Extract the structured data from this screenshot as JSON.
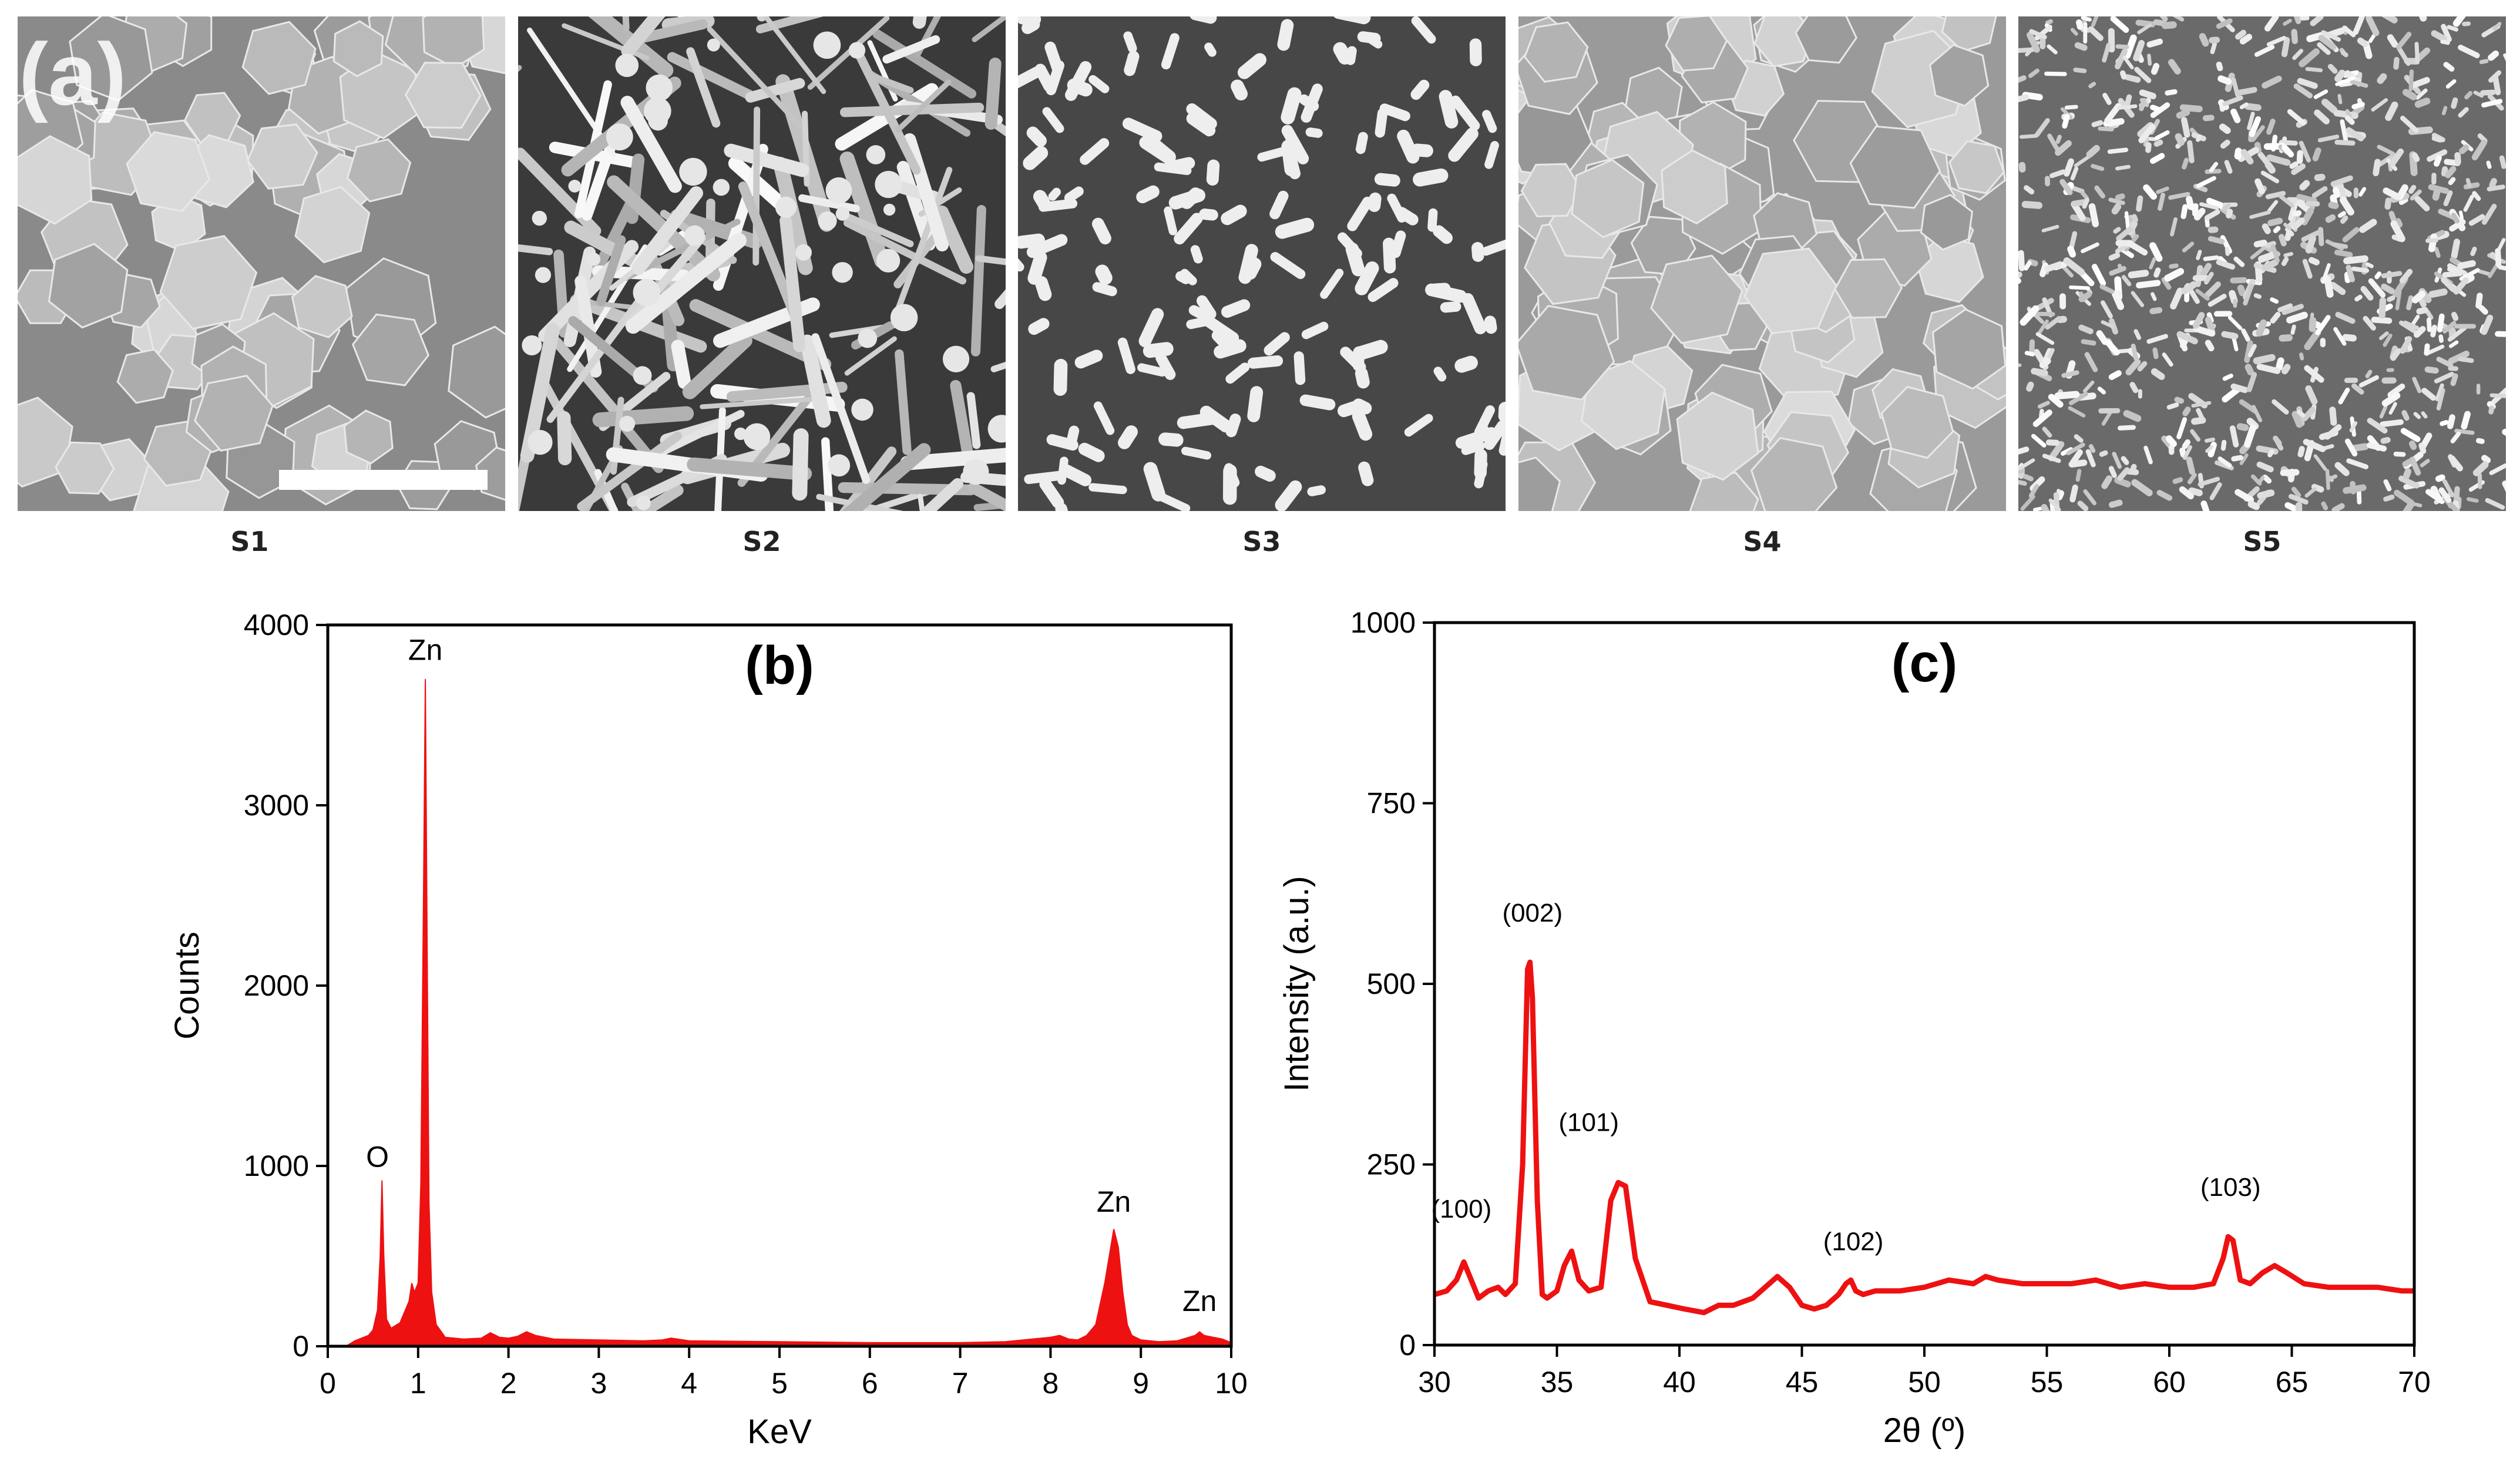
{
  "figure": {
    "panel_a_label": "(a)",
    "sem_images": [
      {
        "label": "S1",
        "morphology": "hexagonal-platelets"
      },
      {
        "label": "S2",
        "morphology": "needle-rods"
      },
      {
        "label": "S3",
        "morphology": "sparse-short-rods"
      },
      {
        "label": "S4",
        "morphology": "dense-hexagonal-platelets"
      },
      {
        "label": "S5",
        "morphology": "fine-dense-grains"
      }
    ]
  },
  "colors": {
    "series": "#ee1111",
    "axis": "#000000"
  },
  "chart_data": [
    {
      "type": "area",
      "panel_label": "(b)",
      "title": "",
      "xlabel": "KeV",
      "ylabel": "Counts",
      "xlim": [
        0,
        10
      ],
      "ylim": [
        0,
        4000
      ],
      "x_ticks": [
        0,
        1,
        2,
        3,
        4,
        5,
        6,
        7,
        8,
        9,
        10
      ],
      "y_ticks": [
        0,
        1000,
        2000,
        3000,
        4000
      ],
      "grid": false,
      "series": [
        {
          "x": [
            0,
            0.2,
            0.3,
            0.35,
            0.4,
            0.45,
            0.5,
            0.55,
            0.58,
            0.6,
            0.62,
            0.65,
            0.7,
            0.8,
            0.9,
            0.93,
            0.96,
            1.0,
            1.03,
            1.06,
            1.08,
            1.1,
            1.12,
            1.15,
            1.2,
            1.3,
            1.5,
            1.7,
            1.8,
            1.9,
            2.0,
            2.1,
            2.2,
            2.3,
            2.5,
            3.0,
            3.5,
            3.7,
            3.8,
            4.0,
            5.0,
            6.0,
            7.0,
            7.5,
            8.0,
            8.1,
            8.2,
            8.3,
            8.4,
            8.5,
            8.6,
            8.65,
            8.7,
            8.75,
            8.8,
            8.85,
            8.9,
            9.0,
            9.2,
            9.4,
            9.5,
            9.6,
            9.65,
            9.7,
            9.8,
            9.9,
            10.0
          ],
          "y": [
            0,
            0,
            30,
            40,
            50,
            60,
            90,
            200,
            500,
            920,
            500,
            150,
            100,
            130,
            250,
            350,
            300,
            350,
            900,
            2500,
            3700,
            2200,
            800,
            300,
            120,
            50,
            40,
            45,
            75,
            50,
            45,
            55,
            80,
            60,
            40,
            35,
            30,
            35,
            45,
            30,
            25,
            20,
            20,
            25,
            50,
            60,
            40,
            35,
            60,
            120,
            350,
            500,
            650,
            550,
            300,
            120,
            60,
            35,
            25,
            30,
            45,
            60,
            80,
            60,
            50,
            40,
            20
          ]
        }
      ],
      "annotations": [
        {
          "text": "O",
          "x": 0.55,
          "y": 950
        },
        {
          "text": "Zn",
          "x": 1.08,
          "y": 3760
        },
        {
          "text": "Zn",
          "x": 8.7,
          "y": 700
        },
        {
          "text": "Zn",
          "x": 9.65,
          "y": 150
        }
      ]
    },
    {
      "type": "line",
      "panel_label": "(c)",
      "title": "",
      "xlabel": "2θ (º)",
      "ylabel": "Intensity (a.u.)",
      "xlim": [
        30,
        70
      ],
      "ylim": [
        0,
        1000
      ],
      "x_ticks": [
        30,
        35,
        40,
        45,
        50,
        55,
        60,
        65,
        70
      ],
      "y_ticks": [
        0,
        250,
        500,
        750,
        1000
      ],
      "grid": false,
      "series": [
        {
          "x": [
            30,
            30.5,
            30.9,
            31.2,
            31.5,
            31.8,
            32.2,
            32.6,
            32.9,
            33.3,
            33.6,
            33.8,
            33.9,
            34.0,
            34.2,
            34.4,
            34.6,
            35.0,
            35.3,
            35.6,
            35.9,
            36.3,
            36.8,
            37.2,
            37.5,
            37.8,
            38.2,
            38.8,
            39.5,
            40.2,
            41.0,
            41.6,
            42.2,
            43.0,
            43.5,
            44.0,
            44.5,
            45.0,
            45.5,
            46.0,
            46.5,
            46.8,
            47.0,
            47.2,
            47.5,
            48.0,
            49.0,
            50.0,
            51.0,
            52.0,
            52.5,
            53.0,
            54.0,
            55.0,
            56.0,
            57.0,
            58.0,
            59.0,
            60.0,
            61.0,
            61.8,
            62.2,
            62.4,
            62.6,
            62.9,
            63.3,
            63.8,
            64.3,
            64.8,
            65.5,
            66.5,
            67.5,
            68.5,
            69.5,
            70.0
          ],
          "y": [
            70,
            75,
            90,
            115,
            90,
            65,
            75,
            80,
            70,
            85,
            250,
            520,
            530,
            480,
            200,
            70,
            65,
            75,
            110,
            130,
            90,
            75,
            80,
            200,
            225,
            220,
            120,
            60,
            55,
            50,
            45,
            55,
            55,
            65,
            80,
            95,
            80,
            55,
            50,
            55,
            70,
            85,
            90,
            75,
            70,
            75,
            75,
            80,
            90,
            85,
            95,
            90,
            85,
            85,
            85,
            90,
            80,
            85,
            80,
            80,
            85,
            120,
            150,
            145,
            90,
            85,
            100,
            110,
            100,
            85,
            80,
            80,
            80,
            75,
            75
          ]
        }
      ],
      "annotations": [
        {
          "text": "(100)",
          "x": 31.1,
          "y": 165
        },
        {
          "text": "(002)",
          "x": 34.0,
          "y": 575
        },
        {
          "text": "(101)",
          "x": 36.3,
          "y": 285
        },
        {
          "text": "(102)",
          "x": 47.1,
          "y": 120
        },
        {
          "text": "(103)",
          "x": 62.5,
          "y": 195
        }
      ]
    }
  ]
}
